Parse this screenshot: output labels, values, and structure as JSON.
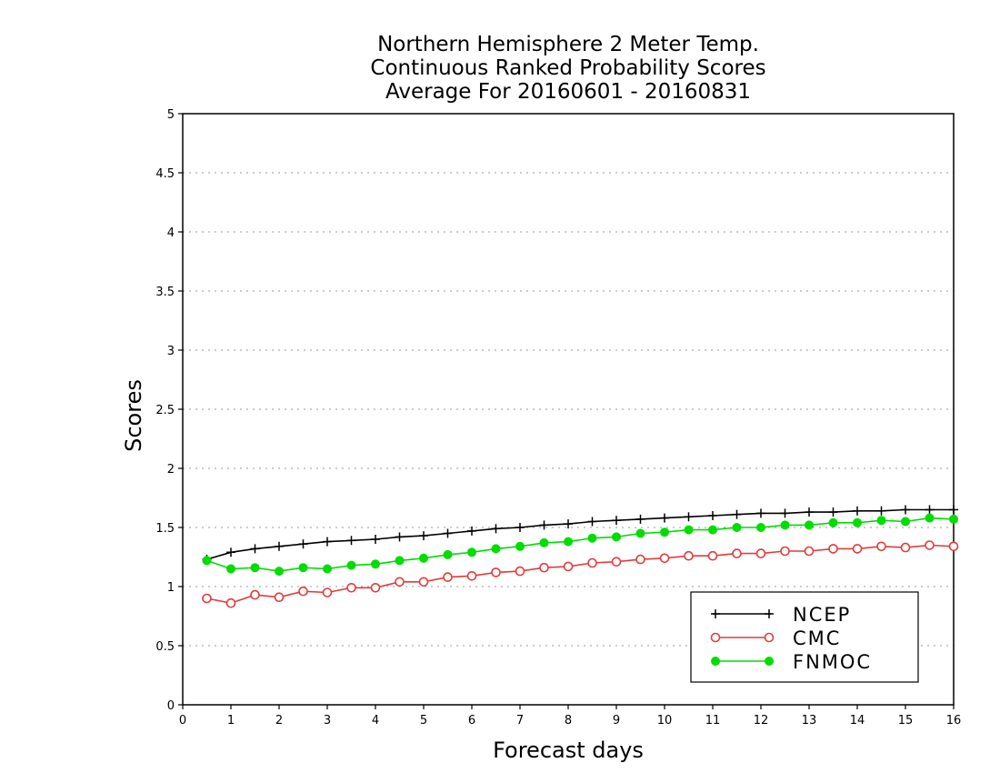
{
  "chart_data": {
    "type": "line",
    "title": [
      "Northern Hemisphere 2 Meter Temp.",
      "Continuous Ranked Probability Scores",
      "Average For 20160601 - 20160831"
    ],
    "xlabel": "Forecast days",
    "ylabel": "Scores",
    "xlim": [
      0,
      16
    ],
    "ylim": [
      0,
      5
    ],
    "xticks": [
      "0",
      "1",
      "2",
      "3",
      "4",
      "5",
      "6",
      "7",
      "8",
      "9",
      "10",
      "11",
      "12",
      "13",
      "14",
      "15",
      "16"
    ],
    "yticks": [
      "0",
      "0.5",
      "1",
      "1.5",
      "2",
      "2.5",
      "3",
      "3.5",
      "4",
      "4.5",
      "5"
    ],
    "grid": true,
    "legend_position": "bottom-right",
    "x": [
      0.5,
      1,
      1.5,
      2,
      2.5,
      3,
      3.5,
      4,
      4.5,
      5,
      5.5,
      6,
      6.5,
      7,
      7.5,
      8,
      8.5,
      9,
      9.5,
      10,
      10.5,
      11,
      11.5,
      12,
      12.5,
      13,
      13.5,
      14,
      14.5,
      15,
      15.5,
      16
    ],
    "series": [
      {
        "name": "NCEP",
        "color": "#000000",
        "marker": "plus",
        "values": [
          1.23,
          1.29,
          1.32,
          1.34,
          1.36,
          1.38,
          1.39,
          1.4,
          1.42,
          1.43,
          1.45,
          1.47,
          1.49,
          1.5,
          1.52,
          1.53,
          1.55,
          1.56,
          1.57,
          1.58,
          1.59,
          1.6,
          1.61,
          1.62,
          1.62,
          1.63,
          1.63,
          1.64,
          1.64,
          1.65,
          1.65,
          1.65
        ]
      },
      {
        "name": "CMC",
        "color": "#e23b3b",
        "marker": "open-circle",
        "values": [
          0.9,
          0.86,
          0.93,
          0.91,
          0.96,
          0.95,
          0.99,
          0.99,
          1.04,
          1.04,
          1.08,
          1.09,
          1.12,
          1.13,
          1.16,
          1.17,
          1.2,
          1.21,
          1.23,
          1.24,
          1.26,
          1.26,
          1.28,
          1.28,
          1.3,
          1.3,
          1.32,
          1.32,
          1.34,
          1.33,
          1.35,
          1.34
        ]
      },
      {
        "name": "FNMOC",
        "color": "#00dd00",
        "marker": "filled-circle",
        "values": [
          1.22,
          1.15,
          1.16,
          1.13,
          1.16,
          1.15,
          1.18,
          1.19,
          1.22,
          1.24,
          1.27,
          1.29,
          1.32,
          1.34,
          1.37,
          1.38,
          1.41,
          1.42,
          1.45,
          1.46,
          1.48,
          1.48,
          1.5,
          1.5,
          1.52,
          1.52,
          1.54,
          1.54,
          1.56,
          1.55,
          1.58,
          1.57
        ]
      }
    ]
  }
}
